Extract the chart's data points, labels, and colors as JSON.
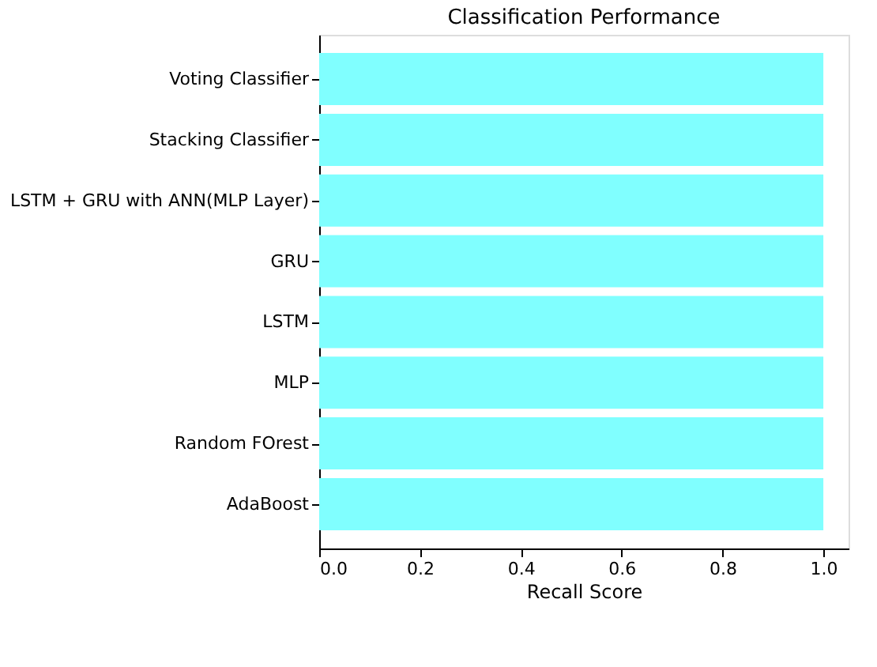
{
  "chart_data": {
    "type": "bar",
    "orientation": "horizontal",
    "title": "Classification Performance",
    "xlabel": "Recall Score",
    "categories": [
      "Voting Classifier",
      "Stacking Classifier",
      "LSTM + GRU with ANN(MLP Layer)",
      "GRU",
      "LSTM",
      "MLP",
      "Random FOrest",
      "AdaBoost"
    ],
    "values": [
      1.0,
      1.0,
      1.0,
      1.0,
      1.0,
      1.0,
      1.0,
      1.0
    ],
    "color": "#80ffff",
    "xlim": [
      0,
      1.05
    ],
    "xticks": [
      {
        "value": 0,
        "label": "0.0"
      },
      0.2,
      0.4,
      0.6,
      0.8,
      {
        "value": 1,
        "label": "1.0"
      }
    ],
    "grid": false
  }
}
